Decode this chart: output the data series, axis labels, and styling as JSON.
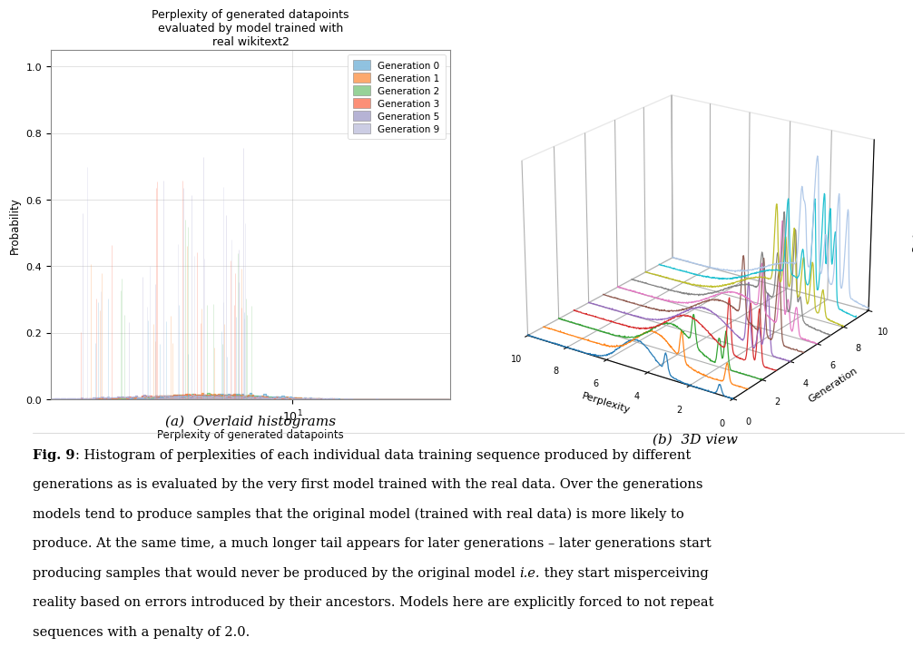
{
  "title": "Perplexity of generated datapoints\nevaluated by model trained with\nreal wikitext2",
  "xlabel": "Perplexity of generated datapoints",
  "ylabel": "Probability",
  "legend_labels": [
    "Generation 0",
    "Generation 1",
    "Generation 2",
    "Generation 3",
    "Generation 5",
    "Generation 9"
  ],
  "gen_colors_2d": [
    "#6BAED6",
    "#FD8D3C",
    "#74C476",
    "#FB6A4A",
    "#9E9AC8",
    "#BCBDDC"
  ],
  "gen_colors_3d": [
    "#1f77b4",
    "#ff7f0e",
    "#2ca02c",
    "#d62728",
    "#9467bd",
    "#8c564b",
    "#e377c2",
    "#7f7f7f",
    "#bcbd22",
    "#17becf",
    "#aec7e8"
  ],
  "subtitle_a": "(a)  Overlaid histograms",
  "subtitle_b": "(b)  3D view",
  "caption_bold": "Fig. 9",
  "caption_text": ": Histogram of perplexities of each individual data training sequence produced by different generations as is evaluated by the very first model trained with the real data. Over the generations models tend to produce samples that the original model (trained with real data) is more likely to produce. At the same time, a much longer tail appears for later generations – later generations start producing samples that would never be produced by the original model ",
  "caption_italic": "i.e.",
  "caption_text2": " they start misperceiving reality based on errors introduced by their ancestors. Models here are explicitly forced to not repeat sequences with a penalty of 2.0.",
  "background_color": "#ffffff",
  "num_generations": 11,
  "yticks": [
    0.0,
    0.2,
    0.4,
    0.6,
    0.8,
    1.0
  ],
  "ylim": [
    0.0,
    1.05
  ]
}
